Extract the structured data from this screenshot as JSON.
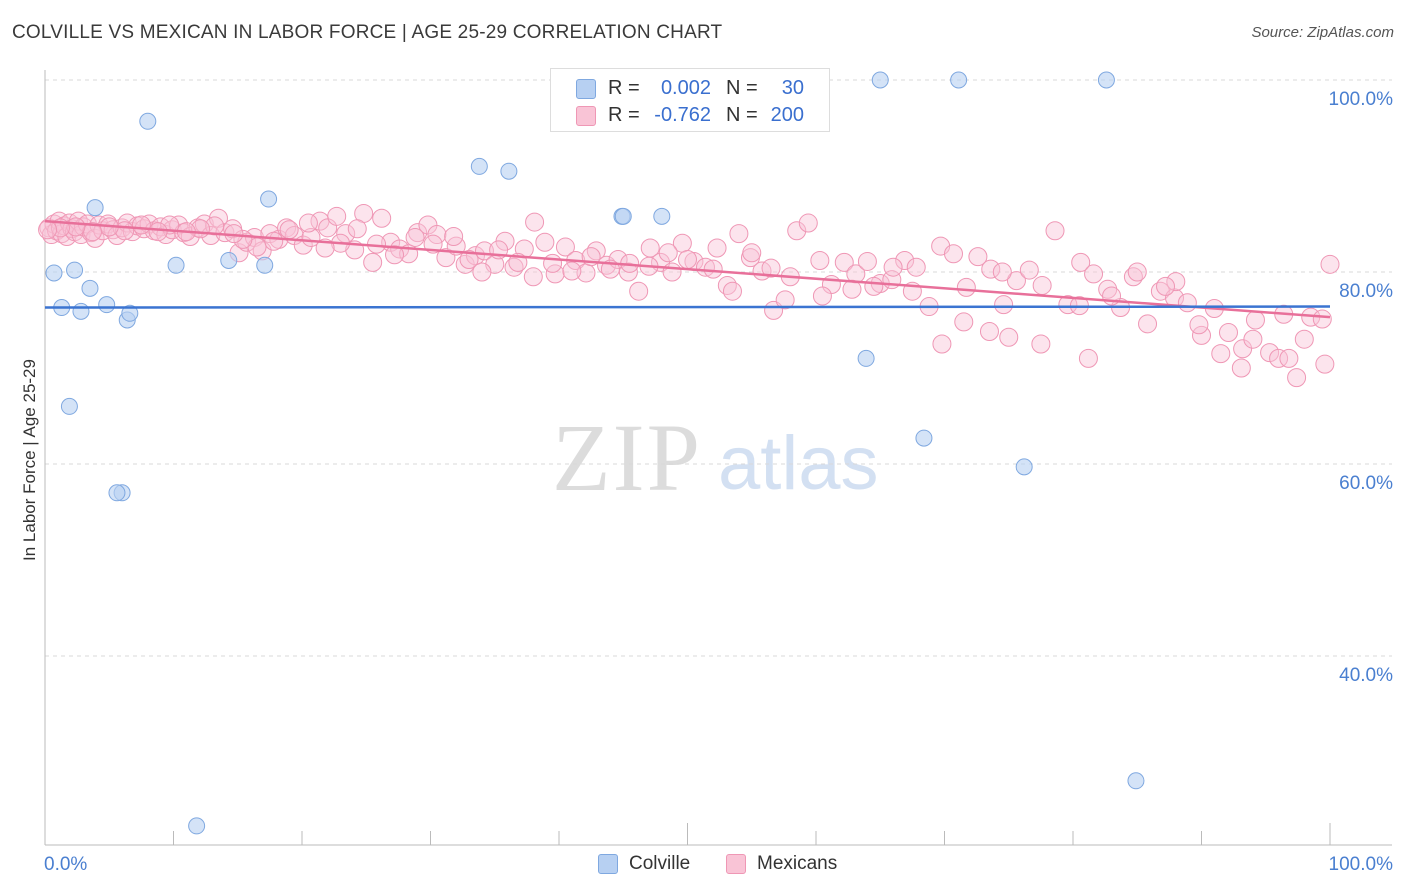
{
  "header": {
    "title": "COLVILLE VS MEXICAN IN LABOR FORCE | AGE 25-29 CORRELATION CHART",
    "source": "Source: ZipAtlas.com"
  },
  "watermark": {
    "zip": "ZIP",
    "atlas": "atlas"
  },
  "legend": {
    "colville": {
      "r_label": "R =",
      "r_value": "0.002",
      "n_label": "N =",
      "n_value": "30"
    },
    "mexicans": {
      "r_label": "R =",
      "r_value": "-0.762",
      "n_label": "N =",
      "n_value": "200"
    }
  },
  "bottom_legend": {
    "colville": "Colville",
    "mexicans": "Mexicans"
  },
  "colors": {
    "colville_fill": "#b7d0f2",
    "colville_stroke": "#7fa8e0",
    "colville_line": "#3b74d1",
    "mexicans_fill": "#f9c4d6",
    "mexicans_stroke": "#ef97b5",
    "mexicans_line": "#e8709a",
    "tick_text": "#4a7fd0"
  },
  "chart_data": {
    "type": "scatter",
    "title": "COLVILLE VS MEXICAN IN LABOR FORCE | AGE 25-29 CORRELATION CHART",
    "xlabel": "",
    "ylabel": "In Labor Force | Age 25-29",
    "xlim": [
      0,
      100
    ],
    "ylim": [
      20,
      102
    ],
    "x_tick_labels": [
      "0.0%",
      "100.0%"
    ],
    "y_ticks": [
      40,
      60,
      80,
      100
    ],
    "y_tick_labels": [
      "40.0%",
      "60.0%",
      "80.0%",
      "100.0%"
    ],
    "grid": true,
    "legend_position": "top-center",
    "series": [
      {
        "name": "Colville",
        "R": 0.002,
        "N": 30,
        "trend": {
          "x": [
            0,
            100
          ],
          "y": [
            76.3,
            76.4
          ]
        },
        "points": [
          [
            0.7,
            79.9
          ],
          [
            1.3,
            76.3
          ],
          [
            2.3,
            80.2
          ],
          [
            2.8,
            75.9
          ],
          [
            3.5,
            78.3
          ],
          [
            3.9,
            86.7
          ],
          [
            4.8,
            76.6
          ],
          [
            6.0,
            57.0
          ],
          [
            5.6,
            57.0
          ],
          [
            6.4,
            75.0
          ],
          [
            6.6,
            75.7
          ],
          [
            8.0,
            95.7
          ],
          [
            1.9,
            66.0
          ],
          [
            10.2,
            80.7
          ],
          [
            11.8,
            22.3
          ],
          [
            14.3,
            81.2
          ],
          [
            17.1,
            80.7
          ],
          [
            17.4,
            87.6
          ],
          [
            33.8,
            91.0
          ],
          [
            36.1,
            90.5
          ],
          [
            44.9,
            85.8
          ],
          [
            48.0,
            85.8
          ],
          [
            65.0,
            100.0
          ],
          [
            71.1,
            100.0
          ],
          [
            63.9,
            71.0
          ],
          [
            68.4,
            62.7
          ],
          [
            76.2,
            59.7
          ],
          [
            82.6,
            100.0
          ],
          [
            84.9,
            27.0
          ],
          [
            45.0,
            85.8
          ]
        ]
      },
      {
        "name": "Mexicans",
        "R": -0.762,
        "N": 200,
        "trend": {
          "x": [
            0,
            100
          ],
          "y": [
            85.3,
            75.3
          ]
        },
        "points": [
          [
            0.3,
            84.6
          ],
          [
            0.5,
            83.9
          ],
          [
            0.7,
            85.0
          ],
          [
            0.9,
            84.3
          ],
          [
            1.1,
            85.3
          ],
          [
            1.3,
            84.0
          ],
          [
            1.5,
            84.8
          ],
          [
            1.7,
            83.7
          ],
          [
            1.9,
            85.1
          ],
          [
            2.1,
            84.5
          ],
          [
            2.3,
            84.2
          ],
          [
            2.6,
            85.3
          ],
          [
            2.8,
            83.9
          ],
          [
            3.0,
            84.7
          ],
          [
            3.3,
            85.0
          ],
          [
            3.6,
            84.1
          ],
          [
            3.9,
            83.5
          ],
          [
            4.2,
            84.9
          ],
          [
            4.5,
            84.3
          ],
          [
            4.9,
            85.0
          ],
          [
            5.3,
            84.4
          ],
          [
            5.6,
            83.8
          ],
          [
            6.0,
            84.6
          ],
          [
            6.4,
            85.1
          ],
          [
            6.8,
            84.2
          ],
          [
            7.2,
            84.8
          ],
          [
            7.7,
            84.5
          ],
          [
            8.1,
            85.0
          ],
          [
            8.5,
            84.3
          ],
          [
            9.0,
            84.7
          ],
          [
            9.4,
            83.9
          ],
          [
            9.9,
            84.4
          ],
          [
            10.4,
            84.9
          ],
          [
            10.8,
            84.1
          ],
          [
            11.3,
            83.7
          ],
          [
            11.9,
            84.6
          ],
          [
            12.4,
            85.0
          ],
          [
            12.9,
            83.8
          ],
          [
            13.5,
            85.6
          ],
          [
            14.0,
            84.1
          ],
          [
            14.6,
            84.5
          ],
          [
            15.1,
            82.0
          ],
          [
            15.7,
            83.1
          ],
          [
            16.3,
            83.6
          ],
          [
            16.9,
            82.2
          ],
          [
            17.5,
            84.0
          ],
          [
            18.2,
            83.4
          ],
          [
            18.8,
            84.6
          ],
          [
            19.4,
            83.8
          ],
          [
            20.1,
            82.8
          ],
          [
            20.7,
            83.6
          ],
          [
            21.4,
            85.3
          ],
          [
            22.0,
            84.6
          ],
          [
            22.7,
            85.8
          ],
          [
            23.4,
            84.0
          ],
          [
            24.1,
            82.3
          ],
          [
            24.8,
            86.1
          ],
          [
            25.5,
            81.0
          ],
          [
            26.2,
            85.6
          ],
          [
            26.9,
            83.1
          ],
          [
            27.6,
            82.4
          ],
          [
            28.3,
            81.9
          ],
          [
            29.0,
            84.1
          ],
          [
            29.8,
            84.9
          ],
          [
            30.5,
            83.9
          ],
          [
            31.2,
            81.5
          ],
          [
            32.0,
            82.7
          ],
          [
            32.7,
            80.8
          ],
          [
            33.5,
            81.7
          ],
          [
            34.2,
            82.2
          ],
          [
            35.0,
            80.8
          ],
          [
            35.8,
            83.2
          ],
          [
            36.5,
            80.5
          ],
          [
            37.3,
            82.4
          ],
          [
            38.1,
            85.2
          ],
          [
            38.9,
            83.1
          ],
          [
            39.7,
            79.8
          ],
          [
            40.5,
            82.6
          ],
          [
            41.3,
            81.2
          ],
          [
            42.1,
            79.9
          ],
          [
            42.9,
            82.2
          ],
          [
            43.7,
            80.7
          ],
          [
            44.6,
            81.3
          ],
          [
            45.4,
            80.0
          ],
          [
            46.2,
            78.0
          ],
          [
            47.1,
            82.5
          ],
          [
            47.9,
            81.0
          ],
          [
            48.8,
            80.0
          ],
          [
            49.6,
            83.0
          ],
          [
            50.5,
            81.1
          ],
          [
            51.4,
            80.5
          ],
          [
            52.3,
            82.5
          ],
          [
            53.1,
            78.6
          ],
          [
            54.0,
            84.0
          ],
          [
            54.9,
            81.5
          ],
          [
            55.8,
            80.1
          ],
          [
            56.7,
            76.0
          ],
          [
            57.6,
            77.1
          ],
          [
            58.5,
            84.3
          ],
          [
            59.4,
            85.1
          ],
          [
            60.3,
            81.2
          ],
          [
            61.2,
            78.7
          ],
          [
            62.2,
            81.0
          ],
          [
            63.1,
            79.8
          ],
          [
            64.0,
            81.1
          ],
          [
            65.0,
            78.8
          ],
          [
            65.9,
            79.2
          ],
          [
            66.9,
            81.2
          ],
          [
            67.8,
            80.5
          ],
          [
            68.8,
            76.4
          ],
          [
            69.7,
            82.7
          ],
          [
            70.7,
            81.9
          ],
          [
            71.7,
            78.4
          ],
          [
            72.6,
            81.6
          ],
          [
            73.6,
            80.3
          ],
          [
            74.6,
            76.6
          ],
          [
            75.6,
            79.1
          ],
          [
            76.6,
            80.2
          ],
          [
            77.6,
            78.6
          ],
          [
            78.6,
            84.3
          ],
          [
            79.6,
            76.6
          ],
          [
            80.6,
            81.0
          ],
          [
            81.6,
            79.8
          ],
          [
            82.7,
            78.2
          ],
          [
            83.7,
            76.3
          ],
          [
            84.7,
            79.5
          ],
          [
            85.8,
            74.6
          ],
          [
            86.8,
            78.0
          ],
          [
            87.9,
            77.3
          ],
          [
            88.9,
            76.8
          ],
          [
            90.0,
            73.4
          ],
          [
            91.0,
            76.2
          ],
          [
            92.1,
            73.7
          ],
          [
            93.2,
            72.0
          ],
          [
            94.2,
            75.0
          ],
          [
            95.3,
            71.6
          ],
          [
            96.4,
            75.6
          ],
          [
            97.4,
            69.0
          ],
          [
            98.5,
            75.3
          ],
          [
            99.6,
            70.4
          ],
          [
            74.5,
            80.0
          ],
          [
            80.5,
            76.5
          ],
          [
            85.0,
            80.0
          ],
          [
            88.0,
            79.0
          ],
          [
            96.0,
            71.0
          ],
          [
            91.5,
            71.5
          ],
          [
            94.0,
            73.0
          ],
          [
            98.0,
            73.0
          ],
          [
            99.4,
            75.1
          ],
          [
            96.8,
            71.0
          ],
          [
            93.1,
            70.0
          ],
          [
            89.8,
            74.5
          ],
          [
            87.2,
            78.5
          ],
          [
            83.0,
            77.5
          ],
          [
            81.2,
            71.0
          ],
          [
            77.5,
            72.5
          ],
          [
            75.0,
            73.2
          ],
          [
            73.5,
            73.8
          ],
          [
            71.5,
            74.8
          ],
          [
            69.8,
            72.5
          ],
          [
            67.5,
            78.0
          ],
          [
            66.0,
            80.5
          ],
          [
            64.5,
            78.5
          ],
          [
            62.8,
            78.2
          ],
          [
            60.5,
            77.5
          ],
          [
            58.0,
            79.5
          ],
          [
            56.5,
            80.4
          ],
          [
            55.0,
            82.0
          ],
          [
            53.5,
            78.0
          ],
          [
            52.0,
            80.3
          ],
          [
            50.0,
            81.3
          ],
          [
            48.5,
            82.0
          ],
          [
            47.0,
            80.6
          ],
          [
            45.5,
            80.9
          ],
          [
            44.0,
            80.3
          ],
          [
            42.5,
            81.6
          ],
          [
            41.0,
            80.1
          ],
          [
            39.5,
            80.9
          ],
          [
            38.0,
            79.5
          ],
          [
            36.8,
            81.0
          ],
          [
            35.3,
            82.3
          ],
          [
            34.0,
            80.0
          ],
          [
            33.0,
            81.3
          ],
          [
            31.8,
            83.7
          ],
          [
            30.2,
            82.9
          ],
          [
            28.8,
            83.6
          ],
          [
            27.2,
            81.8
          ],
          [
            25.8,
            82.9
          ],
          [
            24.3,
            84.5
          ],
          [
            23.0,
            83.0
          ],
          [
            21.8,
            82.5
          ],
          [
            20.5,
            85.1
          ],
          [
            19.0,
            84.4
          ],
          [
            17.8,
            83.2
          ],
          [
            16.5,
            82.6
          ],
          [
            15.4,
            83.4
          ],
          [
            14.7,
            84.0
          ],
          [
            13.2,
            84.8
          ],
          [
            12.1,
            84.5
          ],
          [
            11.0,
            84.2
          ],
          [
            9.7,
            84.9
          ],
          [
            8.8,
            84.2
          ],
          [
            7.5,
            84.9
          ],
          [
            6.2,
            84.3
          ],
          [
            5.0,
            84.7
          ],
          [
            3.7,
            84.2
          ],
          [
            2.4,
            84.7
          ],
          [
            1.2,
            84.6
          ],
          [
            0.2,
            84.4
          ],
          [
            100.0,
            80.8
          ]
        ]
      }
    ]
  }
}
